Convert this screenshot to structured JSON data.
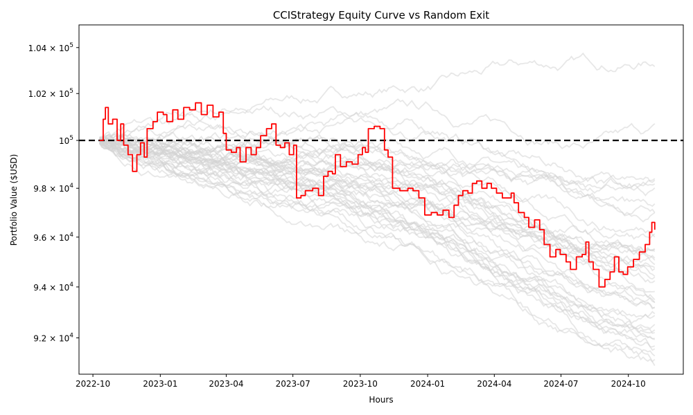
{
  "chart_data": {
    "type": "line",
    "title": "CCIStrategy Equity Curve vs Random Exit",
    "xlabel": "Hours",
    "ylabel": "Portfolio Value ($USD)",
    "yscale": "log",
    "xlim": [
      "2022-09-12",
      "2024-12-15"
    ],
    "ylim": [
      90600,
      105000
    ],
    "x_ticks": [
      "2022-10",
      "2023-01",
      "2023-04",
      "2023-07",
      "2023-10",
      "2024-01",
      "2024-04",
      "2024-07",
      "2024-10"
    ],
    "y_ticks": [
      {
        "value": 92000,
        "mantissa": "9.2",
        "exp": "4"
      },
      {
        "value": 94000,
        "mantissa": "9.4",
        "exp": "4"
      },
      {
        "value": 96000,
        "mantissa": "9.6",
        "exp": "4"
      },
      {
        "value": 98000,
        "mantissa": "9.8",
        "exp": "4"
      },
      {
        "value": 100000,
        "mantissa": "",
        "exp": "5"
      },
      {
        "value": 102000,
        "mantissa": "1.02",
        "exp": "5"
      },
      {
        "value": 104000,
        "mantissa": "1.04",
        "exp": "5"
      }
    ],
    "reference_line": {
      "value": 100000,
      "style": "dashed",
      "color": "#000000"
    },
    "strategy_series": {
      "color": "#ff0000",
      "points": [
        [
          "2022-10-10",
          100000
        ],
        [
          "2022-10-15",
          100900
        ],
        [
          "2022-10-18",
          101400
        ],
        [
          "2022-10-22",
          100700
        ],
        [
          "2022-10-28",
          100900
        ],
        [
          "2022-11-03",
          100000
        ],
        [
          "2022-11-08",
          100700
        ],
        [
          "2022-11-12",
          99800
        ],
        [
          "2022-11-18",
          99400
        ],
        [
          "2022-11-24",
          98700
        ],
        [
          "2022-11-30",
          99400
        ],
        [
          "2022-12-05",
          99900
        ],
        [
          "2022-12-10",
          99300
        ],
        [
          "2022-12-14",
          100500
        ],
        [
          "2022-12-22",
          100800
        ],
        [
          "2022-12-28",
          101200
        ],
        [
          "2023-01-05",
          101100
        ],
        [
          "2023-01-10",
          100800
        ],
        [
          "2023-01-18",
          101300
        ],
        [
          "2023-01-25",
          100900
        ],
        [
          "2023-02-02",
          101400
        ],
        [
          "2023-02-10",
          101300
        ],
        [
          "2023-02-18",
          101600
        ],
        [
          "2023-02-26",
          101100
        ],
        [
          "2023-03-06",
          101500
        ],
        [
          "2023-03-14",
          101000
        ],
        [
          "2023-03-22",
          101200
        ],
        [
          "2023-03-28",
          100300
        ],
        [
          "2023-04-01",
          99600
        ],
        [
          "2023-04-08",
          99500
        ],
        [
          "2023-04-15",
          99700
        ],
        [
          "2023-04-20",
          99100
        ],
        [
          "2023-04-28",
          99700
        ],
        [
          "2023-05-05",
          99400
        ],
        [
          "2023-05-12",
          99700
        ],
        [
          "2023-05-18",
          100200
        ],
        [
          "2023-05-26",
          100500
        ],
        [
          "2023-06-02",
          100700
        ],
        [
          "2023-06-08",
          99800
        ],
        [
          "2023-06-14",
          99700
        ],
        [
          "2023-06-20",
          99900
        ],
        [
          "2023-06-26",
          99400
        ],
        [
          "2023-07-02",
          99800
        ],
        [
          "2023-07-06",
          97600
        ],
        [
          "2023-07-12",
          97700
        ],
        [
          "2023-07-18",
          97900
        ],
        [
          "2023-07-28",
          98000
        ],
        [
          "2023-08-05",
          97700
        ],
        [
          "2023-08-12",
          98500
        ],
        [
          "2023-08-18",
          98700
        ],
        [
          "2023-08-24",
          98600
        ],
        [
          "2023-08-28",
          99400
        ],
        [
          "2023-09-04",
          98900
        ],
        [
          "2023-09-12",
          99100
        ],
        [
          "2023-09-20",
          99000
        ],
        [
          "2023-09-28",
          99400
        ],
        [
          "2023-10-04",
          99700
        ],
        [
          "2023-10-08",
          99500
        ],
        [
          "2023-10-12",
          100500
        ],
        [
          "2023-10-20",
          100600
        ],
        [
          "2023-10-28",
          100500
        ],
        [
          "2023-11-03",
          99600
        ],
        [
          "2023-11-08",
          99300
        ],
        [
          "2023-11-14",
          98000
        ],
        [
          "2023-11-24",
          97900
        ],
        [
          "2023-12-05",
          98000
        ],
        [
          "2023-12-12",
          97900
        ],
        [
          "2023-12-20",
          97600
        ],
        [
          "2023-12-28",
          96900
        ],
        [
          "2024-01-06",
          97000
        ],
        [
          "2024-01-14",
          96900
        ],
        [
          "2024-01-22",
          97100
        ],
        [
          "2024-01-30",
          96800
        ],
        [
          "2024-02-06",
          97300
        ],
        [
          "2024-02-12",
          97700
        ],
        [
          "2024-02-18",
          97900
        ],
        [
          "2024-02-25",
          97800
        ],
        [
          "2024-03-02",
          98200
        ],
        [
          "2024-03-08",
          98300
        ],
        [
          "2024-03-15",
          98000
        ],
        [
          "2024-03-22",
          98200
        ],
        [
          "2024-03-28",
          98000
        ],
        [
          "2024-04-04",
          97800
        ],
        [
          "2024-04-12",
          97600
        ],
        [
          "2024-04-18",
          97600
        ],
        [
          "2024-04-24",
          97800
        ],
        [
          "2024-04-28",
          97400
        ],
        [
          "2024-05-04",
          97000
        ],
        [
          "2024-05-12",
          96800
        ],
        [
          "2024-05-18",
          96400
        ],
        [
          "2024-05-26",
          96700
        ],
        [
          "2024-06-02",
          96300
        ],
        [
          "2024-06-08",
          95700
        ],
        [
          "2024-06-16",
          95200
        ],
        [
          "2024-06-24",
          95500
        ],
        [
          "2024-06-30",
          95300
        ],
        [
          "2024-07-08",
          95000
        ],
        [
          "2024-07-14",
          94700
        ],
        [
          "2024-07-22",
          95200
        ],
        [
          "2024-07-30",
          95300
        ],
        [
          "2024-08-04",
          95800
        ],
        [
          "2024-08-08",
          95000
        ],
        [
          "2024-08-14",
          94700
        ],
        [
          "2024-08-22",
          94000
        ],
        [
          "2024-08-30",
          94300
        ],
        [
          "2024-09-06",
          94600
        ],
        [
          "2024-09-12",
          95200
        ],
        [
          "2024-09-18",
          94600
        ],
        [
          "2024-09-24",
          94500
        ],
        [
          "2024-09-30",
          94800
        ],
        [
          "2024-10-08",
          95100
        ],
        [
          "2024-10-16",
          95400
        ],
        [
          "2024-10-24",
          95700
        ],
        [
          "2024-10-30",
          96200
        ],
        [
          "2024-11-02",
          96600
        ],
        [
          "2024-11-06",
          96300
        ]
      ]
    },
    "random_exit_series": {
      "color": "#d3d3d3",
      "count": 40,
      "end_values": [
        103300,
        100100,
        98700,
        98300,
        97800,
        97500,
        97200,
        96900,
        96600,
        96300,
        96000,
        95800,
        95500,
        95300,
        95100,
        94900,
        94700,
        94500,
        94300,
        94100,
        93900,
        93700,
        93500,
        93300,
        93100,
        92900,
        92700,
        92500,
        92300,
        92100,
        91900,
        91700,
        91500,
        91300,
        91100,
        92700,
        93800,
        95000,
        96100,
        91300
      ]
    }
  }
}
